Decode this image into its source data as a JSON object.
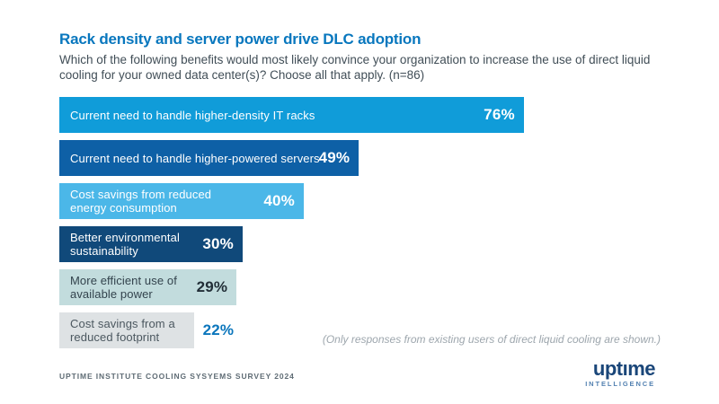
{
  "header": {
    "title": "Rack density and server power drive DLC adoption",
    "subtitle": "Which of the following benefits would most likely convince your organization to increase the use of direct liquid cooling for your owned data center(s)? Choose all that apply. (n=86)"
  },
  "colors": {
    "title_blue": "#0877BE",
    "subtitle_gray": "#414E57",
    "note_gray": "#9DA6AD",
    "source_gray": "#5F6C75",
    "logo_navy": "#1A4679",
    "logo_light_blue": "#5381B1"
  },
  "chart_data": {
    "type": "bar",
    "orientation": "horizontal",
    "unit": "%",
    "xlim": [
      0,
      100
    ],
    "grid": false,
    "legend": false,
    "categories": [
      "Current need to handle higher-density IT racks",
      "Current need to handle higher-powered servers",
      "Cost savings from reduced energy consumption",
      "Better environmental sustainability",
      "More efficient use of available power",
      "Cost savings from a reduced footprint"
    ],
    "values": [
      76,
      49,
      40,
      30,
      29,
      22
    ],
    "bars": [
      {
        "label_lines": [
          "Current need to handle higher-density IT racks"
        ],
        "value": 76,
        "value_label": "76%",
        "value_inside": true,
        "bar_color": "#109CD9",
        "label_color": "#FFFFFF",
        "value_color": "#FFFFFF"
      },
      {
        "label_lines": [
          "Current need to handle higher-powered servers"
        ],
        "value": 49,
        "value_label": "49%",
        "value_inside": true,
        "bar_color": "#0E60A6",
        "label_color": "#FFFFFF",
        "value_color": "#FFFFFF"
      },
      {
        "label_lines": [
          "Cost savings from reduced",
          "energy consumption"
        ],
        "value": 40,
        "value_label": "40%",
        "value_inside": true,
        "bar_color": "#4BB7E8",
        "label_color": "#FFFFFF",
        "value_color": "#FFFFFF"
      },
      {
        "label_lines": [
          "Better environmental",
          "sustainability"
        ],
        "value": 30,
        "value_label": "30%",
        "value_inside": true,
        "bar_color": "#10497A",
        "label_color": "#FFFFFF",
        "value_color": "#FFFFFF"
      },
      {
        "label_lines": [
          "More efficient use of",
          "available power"
        ],
        "value": 29,
        "value_label": "29%",
        "value_inside": true,
        "bar_color": "#C2DCDD",
        "label_color": "#33434D",
        "value_color": "#222E37"
      },
      {
        "label_lines": [
          "Cost savings from a",
          "reduced footprint"
        ],
        "value": 22,
        "value_label": "22%",
        "value_inside": false,
        "bar_color": "#DEE2E4",
        "label_color": "#4C5860",
        "value_color": "#0B76BC"
      }
    ],
    "note": "(Only responses from existing users of direct liquid cooling are shown.)"
  },
  "footer": {
    "survey_label": "UPTIME INSTITUTE COOLING SYSYEMS SURVEY 2024",
    "logo": {
      "wordmark": "uptıme",
      "sub": "INTELLIGENCE"
    }
  }
}
